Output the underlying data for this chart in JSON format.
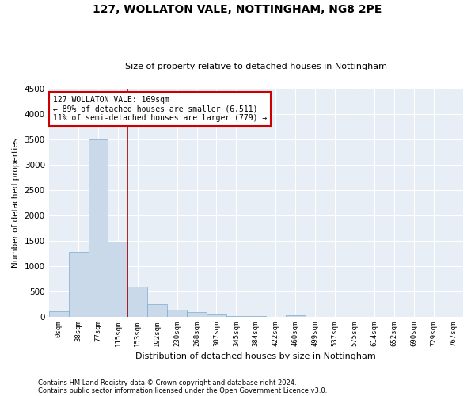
{
  "title": "127, WOLLATON VALE, NOTTINGHAM, NG8 2PE",
  "subtitle": "Size of property relative to detached houses in Nottingham",
  "xlabel": "Distribution of detached houses by size in Nottingham",
  "ylabel": "Number of detached properties",
  "bar_color": "#cad9ea",
  "bar_edge_color": "#7baacf",
  "background_color": "#e8eef5",
  "grid_color": "#ffffff",
  "categories": [
    "0sqm",
    "38sqm",
    "77sqm",
    "115sqm",
    "153sqm",
    "192sqm",
    "230sqm",
    "268sqm",
    "307sqm",
    "345sqm",
    "384sqm",
    "422sqm",
    "460sqm",
    "499sqm",
    "537sqm",
    "575sqm",
    "614sqm",
    "652sqm",
    "690sqm",
    "729sqm",
    "767sqm"
  ],
  "values": [
    100,
    1280,
    3500,
    1480,
    580,
    240,
    140,
    80,
    40,
    15,
    5,
    0,
    20,
    0,
    0,
    0,
    0,
    0,
    0,
    0,
    0
  ],
  "ylim": [
    0,
    4500
  ],
  "yticks": [
    0,
    500,
    1000,
    1500,
    2000,
    2500,
    3000,
    3500,
    4000,
    4500
  ],
  "annotation_text": "127 WOLLATON VALE: 169sqm\n← 89% of detached houses are smaller (6,511)\n11% of semi-detached houses are larger (779) →",
  "annotation_box_color": "#ffffff",
  "annotation_box_edge": "#cc0000",
  "line_color": "#aa0000",
  "line_x_index": 3.5,
  "footer1": "Contains HM Land Registry data © Crown copyright and database right 2024.",
  "footer2": "Contains public sector information licensed under the Open Government Licence v3.0."
}
